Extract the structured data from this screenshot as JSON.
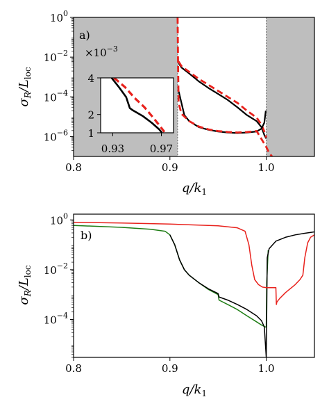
{
  "chart_data": [
    {
      "type": "line",
      "panel_label": "a)",
      "xlabel": "q/k₁",
      "ylabel": "σR/Lloc",
      "xlabel_parts": {
        "var": "q/k",
        "sub": "1"
      },
      "ylabel_parts": {
        "var": "σ",
        "sub1": "R",
        "mid": "/L",
        "sub2": "loc"
      },
      "xlim": [
        0.8,
        1.05
      ],
      "ylim": [
        1e-07,
        1
      ],
      "yscale": "log",
      "x_ticks": [
        "0.8",
        "0.9",
        "1.0"
      ],
      "x_tick_values": [
        0.8,
        0.9,
        1.0
      ],
      "y_ticks": [
        {
          "base": "10",
          "exp": "0"
        },
        {
          "base": "10",
          "exp": "−2"
        },
        {
          "base": "10",
          "exp": "−4"
        },
        {
          "base": "10",
          "exp": "−6"
        }
      ],
      "y_tick_values": [
        1,
        0.01,
        0.0001,
        1e-06
      ],
      "shaded_regions": [
        [
          0.8,
          0.908
        ],
        [
          1.0,
          1.05
        ]
      ],
      "vertical_lines": [
        0.908,
        1.0
      ],
      "series": [
        {
          "color": "#000000",
          "style": "solid",
          "x": [
            0.909,
            0.912,
            0.92,
            0.93,
            0.94,
            0.95,
            0.96,
            0.97,
            0.98,
            0.99,
            0.995,
            0.998,
            1.0
          ],
          "y": [
            0.005,
            0.003,
            0.0015,
            0.0006,
            0.00028,
            0.00014,
            7e-05,
            3e-05,
            1.2e-05,
            6e-06,
            3e-06,
            1.2e-06,
            8e-07
          ]
        },
        {
          "color": "#e8211c",
          "style": "dashed",
          "x": [
            0.909,
            0.912,
            0.92,
            0.93,
            0.94,
            0.95,
            0.96,
            0.97,
            0.98,
            0.99,
            0.995,
            0.998,
            1.0
          ],
          "y": [
            0.006,
            0.0035,
            0.0018,
            0.0008,
            0.0004,
            0.0002,
            0.0001,
            5e-05,
            2e-05,
            9e-06,
            4e-06,
            1.8e-06,
            9e-07
          ]
        },
        {
          "color": "#000000",
          "style": "solid",
          "x": [
            0.909,
            0.915,
            0.92,
            0.93,
            0.94,
            0.95,
            0.96,
            0.97,
            0.98,
            0.99,
            0.995,
            0.998,
            0.9995
          ],
          "y": [
            0.0002,
            1.2e-05,
            6e-06,
            3e-06,
            2.2e-06,
            1.8e-06,
            1.6e-06,
            1.5e-06,
            1.6e-06,
            1.8e-06,
            2.5e-06,
            5e-06,
            2e-05
          ]
        },
        {
          "color": "#e8211c",
          "style": "dashed",
          "x": [
            0.908,
            0.9085,
            0.909,
            0.912,
            0.92,
            0.93,
            0.94,
            0.95,
            0.96,
            0.97,
            0.98,
            0.99,
            1.0,
            1.003,
            1.006
          ],
          "y": [
            1,
            0.003,
            5e-05,
            1.4e-05,
            6e-06,
            3.2e-06,
            2.3e-06,
            1.9e-06,
            1.7e-06,
            1.6e-06,
            1.7e-06,
            1.9e-06,
            3e-07,
            1.5e-07,
            1e-07
          ]
        }
      ],
      "inset": {
        "multiplier": {
          "base": "×10",
          "exp": "−3"
        },
        "xlim": [
          0.92,
          0.98
        ],
        "ylim": [
          1,
          4
        ],
        "x_ticks": [
          "0.93",
          "0.97"
        ],
        "x_tick_values": [
          0.93,
          0.97
        ],
        "y_ticks": [
          "1",
          "2",
          "4"
        ],
        "y_tick_values": [
          1,
          2,
          4
        ],
        "series": [
          {
            "color": "#000000",
            "style": "solid",
            "x": [
              0.929,
              0.935,
              0.941,
              0.944,
              0.946,
              0.955,
              0.962,
              0.968,
              0.9705
            ],
            "y": [
              4,
              3.5,
              2.95,
              2.35,
              2.25,
              1.9,
              1.55,
              1.2,
              1.0
            ]
          },
          {
            "color": "#e8211c",
            "style": "dashed",
            "x": [
              0.931,
              0.94,
              0.948,
              0.956,
              0.963,
              0.969,
              0.9725
            ],
            "y": [
              4,
              3.5,
              2.9,
              2.4,
              1.85,
              1.35,
              1.05
            ]
          }
        ]
      }
    },
    {
      "type": "line",
      "panel_label": "b)",
      "xlabel": "q/k₁",
      "ylabel": "σR/Lloc",
      "xlabel_parts": {
        "var": "q/k",
        "sub": "1"
      },
      "ylabel_parts": {
        "var": "σ",
        "sub1": "R",
        "mid": "/L",
        "sub2": "loc"
      },
      "xlim": [
        0.8,
        1.05
      ],
      "ylim": [
        3e-06,
        1.7
      ],
      "yscale": "log",
      "x_ticks": [
        "0.8",
        "0.9",
        "1.0"
      ],
      "x_tick_values": [
        0.8,
        0.9,
        1.0
      ],
      "y_ticks": [
        {
          "base": "10",
          "exp": "0"
        },
        {
          "base": "10",
          "exp": "−2"
        },
        {
          "base": "10",
          "exp": "−4"
        }
      ],
      "y_tick_values": [
        1,
        0.01,
        0.0001
      ],
      "series": [
        {
          "color": "#1e7d14",
          "style": "solid",
          "x": [
            0.8,
            0.85,
            0.88,
            0.895,
            0.9,
            0.905,
            0.91,
            0.915,
            0.92,
            0.93,
            0.94,
            0.95,
            0.951,
            0.96,
            0.97,
            0.98,
            0.99,
            0.995,
            0.999,
            1.0,
            1.0005,
            1.002
          ],
          "y": [
            0.6,
            0.5,
            0.42,
            0.35,
            0.25,
            0.1,
            0.025,
            0.01,
            0.006,
            0.003,
            0.0016,
            0.001,
            0.0006,
            0.0004,
            0.00025,
            0.00014,
            8e-05,
            6e-05,
            5e-05,
            5e-05,
            0.003,
            0.06
          ]
        },
        {
          "color": "#000000",
          "style": "solid",
          "x": [
            0.9,
            0.905,
            0.91,
            0.915,
            0.92,
            0.93,
            0.94,
            0.95,
            0.951,
            0.96,
            0.97,
            0.98,
            0.99,
            0.995,
            0.998,
            1.0,
            1.0005,
            1.001,
            1.003,
            1.01,
            1.02,
            1.03,
            1.04,
            1.05
          ],
          "y": [
            0.25,
            0.1,
            0.025,
            0.01,
            0.006,
            0.003,
            0.0017,
            0.0011,
            0.0008,
            0.0006,
            0.0004,
            0.00025,
            0.00014,
            9e-05,
            5e-05,
            3e-06,
            0.0002,
            0.03,
            0.07,
            0.14,
            0.2,
            0.25,
            0.29,
            0.33
          ]
        },
        {
          "color": "#e8211c",
          "style": "solid",
          "x": [
            0.8,
            0.85,
            0.9,
            0.95,
            0.97,
            0.978,
            0.982,
            0.985,
            0.988,
            0.992,
            0.996,
            1.0,
            1.005,
            1.01,
            1.0105,
            1.011,
            1.014,
            1.02,
            1.03,
            1.035,
            1.038,
            1.04,
            1.043,
            1.046,
            1.05
          ],
          "y": [
            0.8,
            0.75,
            0.68,
            0.58,
            0.48,
            0.35,
            0.1,
            0.015,
            0.004,
            0.0025,
            0.002,
            0.0019,
            0.0019,
            0.0019,
            0.0004,
            0.0005,
            0.0007,
            0.0012,
            0.0025,
            0.004,
            0.006,
            0.03,
            0.12,
            0.2,
            0.25
          ]
        }
      ]
    }
  ]
}
